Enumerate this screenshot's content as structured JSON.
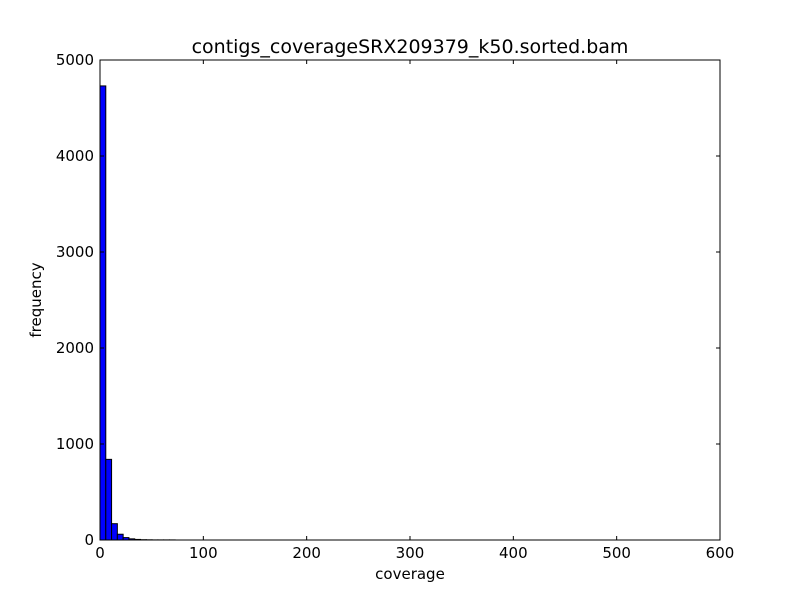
{
  "chart_data": {
    "type": "bar",
    "title": "contigs_coverageSRX209379_k50.sorted.bam",
    "xlabel": "coverage",
    "ylabel": "frequency",
    "xlim": [
      0,
      600
    ],
    "ylim": [
      0,
      5000
    ],
    "xticks": [
      "0",
      "100",
      "200",
      "300",
      "400",
      "500",
      "600"
    ],
    "yticks": [
      "0",
      "1000",
      "2000",
      "3000",
      "4000",
      "5000"
    ],
    "grid": false,
    "bar_color": "#0000ff",
    "bins": [
      {
        "start": 0.0,
        "end": 5.6,
        "value": 4730
      },
      {
        "start": 5.6,
        "end": 11.2,
        "value": 840
      },
      {
        "start": 11.2,
        "end": 16.8,
        "value": 170
      },
      {
        "start": 16.8,
        "end": 22.4,
        "value": 60
      },
      {
        "start": 22.4,
        "end": 28.0,
        "value": 25
      },
      {
        "start": 28.0,
        "end": 33.6,
        "value": 12
      },
      {
        "start": 33.6,
        "end": 39.2,
        "value": 6
      },
      {
        "start": 39.2,
        "end": 44.8,
        "value": 3
      },
      {
        "start": 44.8,
        "end": 50.4,
        "value": 2
      },
      {
        "start": 50.4,
        "end": 56.0,
        "value": 1
      },
      {
        "start": 56.0,
        "end": 61.6,
        "value": 1
      },
      {
        "start": 61.6,
        "end": 67.2,
        "value": 1
      },
      {
        "start": 67.2,
        "end": 72.8,
        "value": 1
      }
    ]
  }
}
